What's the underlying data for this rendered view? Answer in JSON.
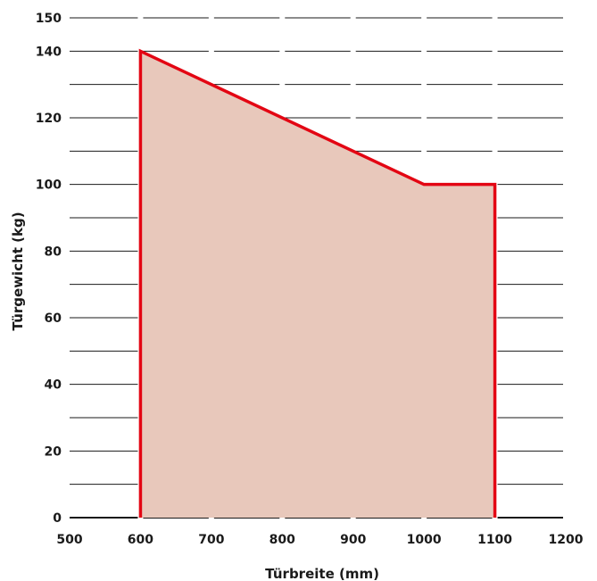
{
  "chart_data": {
    "type": "area",
    "title": "",
    "xlabel": "Türbreite (mm)",
    "ylabel": "Türgewicht (kg)",
    "xlim": [
      500,
      1200
    ],
    "ylim": [
      0,
      150
    ],
    "x_ticks": [
      "500",
      "600",
      "700",
      "800",
      "900",
      "1000",
      "1100",
      "1200"
    ],
    "y_ticks": [
      "0",
      "20",
      "40",
      "60",
      "80",
      "100",
      "120",
      "140",
      "150"
    ],
    "series": [
      {
        "x": [
          600,
          600,
          1000,
          1100,
          1100
        ],
        "y": [
          0,
          140,
          100,
          100,
          0
        ]
      }
    ],
    "grid": true,
    "colors": {
      "line": "#e30613",
      "fill": "#e8c8bb",
      "grid": "#1a1a1a"
    }
  }
}
